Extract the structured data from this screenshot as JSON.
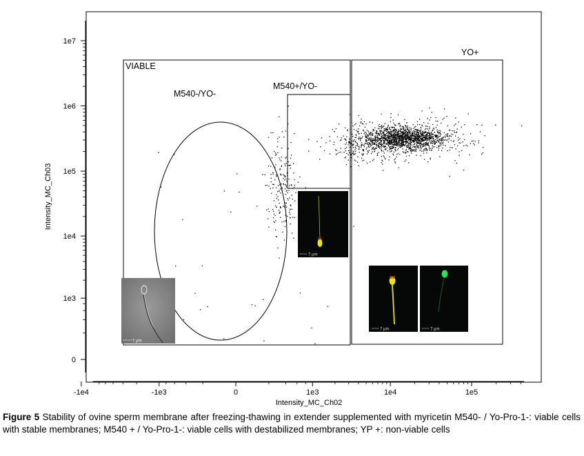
{
  "chart_data": {
    "type": "scatter",
    "xlabel": "Intensity_MC_Ch02",
    "ylabel": "Intensity_MC_Ch03",
    "x_scale": "logicle",
    "y_scale": "logicle",
    "x_ticks": [
      "-1e4",
      "-1e3",
      "0",
      "1e3",
      "1e4",
      "1e5"
    ],
    "y_ticks": [
      "1e7",
      "1e6",
      "1e5",
      "1e4",
      "1e3",
      "0"
    ],
    "gates": [
      {
        "label": "VIABLE",
        "shape": "rectangle"
      },
      {
        "label": "M540-/YO-",
        "shape": "ellipse"
      },
      {
        "label": "M540+/YO-",
        "shape": "rectangle"
      },
      {
        "label": "YO+",
        "shape": "rectangle"
      }
    ],
    "populations": [
      {
        "gate": "M540-/YO-",
        "center_x": 350,
        "center_y": 60000,
        "spread": "diffuse"
      },
      {
        "gate": "M540+/YO-",
        "center_x": 5000,
        "center_y": 250000,
        "spread": "scattered"
      },
      {
        "gate": "YO+",
        "center_x": 15000,
        "center_y": 320000,
        "spread": "dense"
      }
    ],
    "inset_scale_label": "7 µm",
    "legend": "none",
    "grid": false
  },
  "colors": {
    "points": "#000000",
    "inset_background_dark": "#050807",
    "inset_brightfield": "#8a8a8a",
    "fluor_yellow": "#e6e31e",
    "fluor_green": "#2ee05a",
    "fluor_red": "#c23a1c"
  },
  "caption": {
    "label": "Figure 5",
    "text": " Stability of ovine sperm membrane after freezing-thawing in extender supplemented with myricetin M540- / Yo-Pro-1-: viable cells with stable membranes; M540 + / Yo-Pro-1-: viable cells with destabilized membranes; YP +: non-viable cells"
  }
}
